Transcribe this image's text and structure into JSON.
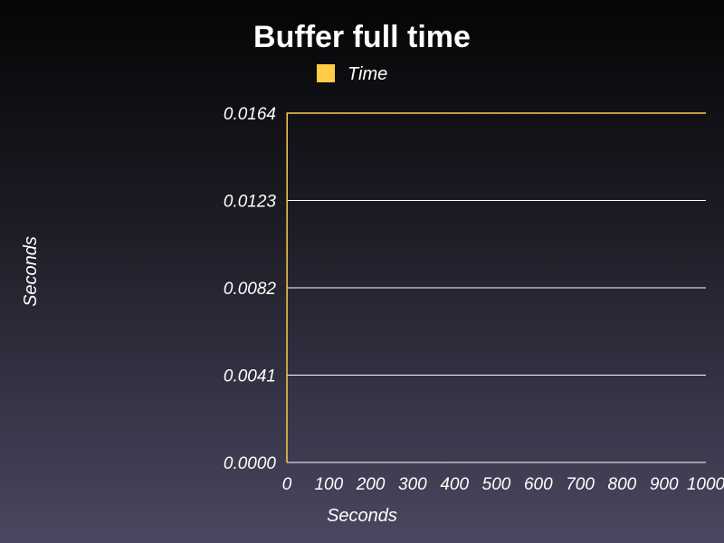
{
  "chart_data": {
    "type": "line",
    "title": "Buffer full time",
    "xlabel": "Seconds",
    "ylabel": "Seconds",
    "xlim": [
      0,
      1000
    ],
    "ylim": [
      0,
      0.0164
    ],
    "x_ticks": [
      "0",
      "100",
      "200",
      "300",
      "400",
      "500",
      "600",
      "700",
      "800",
      "900",
      "1000"
    ],
    "y_ticks": [
      "0.0000",
      "0.0041",
      "0.0082",
      "0.0123",
      "0.0164"
    ],
    "grid": true,
    "legend_position": "top",
    "series": [
      {
        "name": "Time",
        "color": "#ffcc44",
        "x": [
          0,
          0.5,
          1,
          2,
          1000
        ],
        "y": [
          0,
          0.0164,
          0.0164,
          0.0164,
          0.0164
        ]
      }
    ]
  }
}
